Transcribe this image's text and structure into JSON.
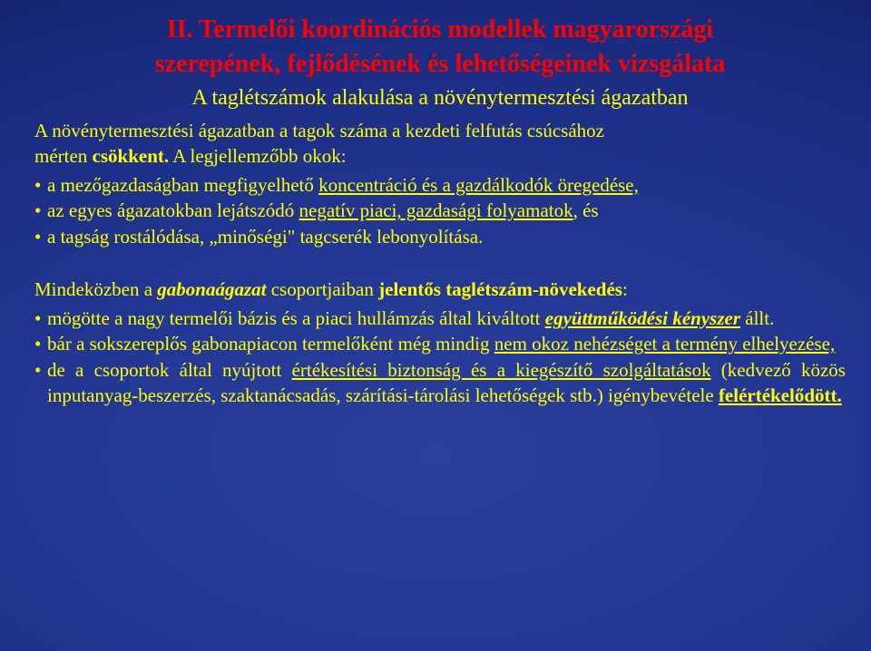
{
  "colors": {
    "title": "#ff0000",
    "text": "#ffff00",
    "background_center": "#2a3f9e",
    "background_edge": "#050c30"
  },
  "typography": {
    "font_family": "Times New Roman",
    "title_fontsize": 28,
    "subtitle_fontsize": 24,
    "body_fontsize": 21
  },
  "heading": {
    "title1": "II. Termelői koordinációs modellek magyarországi",
    "title2": "szerepének, fejlődésének és lehetőségeinek vizsgálata",
    "subtitle": "A taglétszámok alakulása a növénytermesztési ágazatban"
  },
  "intro": {
    "lead1": "A növénytermesztési ágazatban a tagok száma a kezdeti felfutás csúcsához",
    "lead2_pre": "mérten ",
    "lead2_b": "csökkent.",
    "lead2_post": " A legjellemzőbb okok:"
  },
  "bullets1": {
    "b1_pre": "a mezőgazdaságban megfigyelhető ",
    "b1_u": "koncentráció és a gazdálkodók öregedése,",
    "b2_pre": "az egyes ágazatokban lejátszódó ",
    "b2_u": "negatív piaci, gazdasági folyamatok",
    "b2_post": ", és",
    "b3": "a tagság rostálódása, „minőségi\" tagcserék lebonyolítása."
  },
  "mid": {
    "line_pre": "Mindeközben a ",
    "line_i": "gabonaágazat",
    "line_mid": " csoportjaiban ",
    "line_b": "jelentős taglétszám-növekedés",
    "line_end": ":"
  },
  "bullets2": {
    "b1_pre": "mögötte a nagy termelői bázis és a piaci hullámzás által kiváltott ",
    "b1_ub": "együttműködési kényszer",
    "b1_post": " állt.",
    "b2_pre": "bár a sokszereplős gabonapiacon termelőként még mindig ",
    "b2_u": "nem okoz nehézséget a termény elhelyezése,",
    "b3_pre": "de a csoportok által nyújtott ",
    "b3_u1": "értékesítési biztonság és a kiegészítő szolgáltatások",
    "b3_paren": " (kedvező közös inputanyag-beszerzés, szaktanácsadás, szárítási-tárolási lehetőségek stb.) igénybevétele ",
    "b3_u2": "felértékelődött."
  }
}
